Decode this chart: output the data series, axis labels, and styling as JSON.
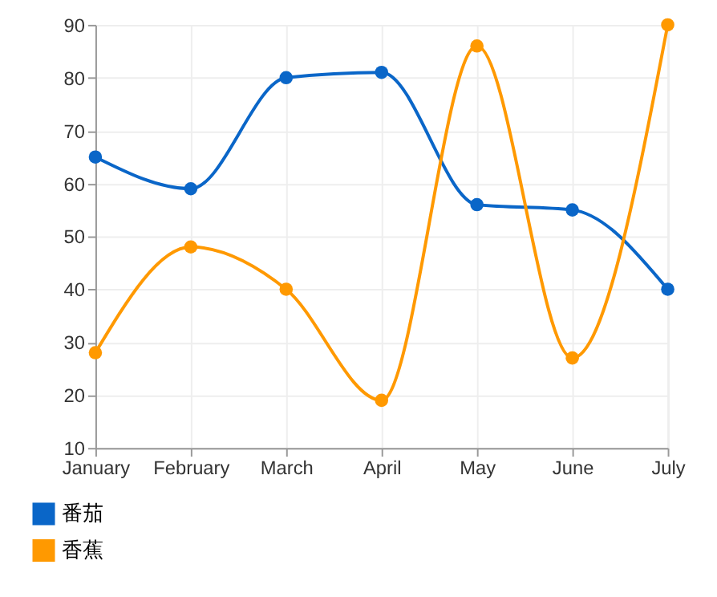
{
  "chart_data": {
    "type": "line",
    "categories": [
      "January",
      "February",
      "March",
      "April",
      "May",
      "June",
      "July"
    ],
    "series": [
      {
        "name": "番茄",
        "color": "#0a66c8",
        "values": [
          65,
          59,
          80,
          81,
          56,
          55,
          40
        ]
      },
      {
        "name": "香蕉",
        "color": "#ff9900",
        "values": [
          28,
          48,
          40,
          19,
          86,
          27,
          90
        ]
      }
    ],
    "ylim": [
      10,
      90
    ],
    "yticks": [
      10,
      20,
      30,
      40,
      50,
      60,
      70,
      80,
      90
    ],
    "grid": true,
    "legend": "bottom left",
    "marker": "circle",
    "line_style": "solid"
  }
}
